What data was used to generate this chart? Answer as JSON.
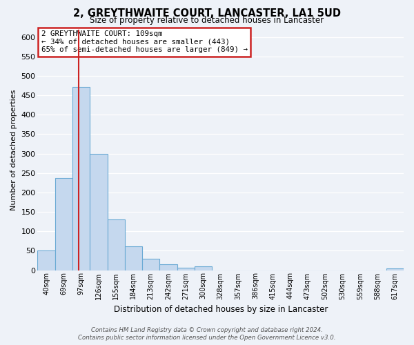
{
  "title": "2, GREYTHWAITE COURT, LANCASTER, LA1 5UD",
  "subtitle": "Size of property relative to detached houses in Lancaster",
  "xlabel": "Distribution of detached houses by size in Lancaster",
  "ylabel": "Number of detached properties",
  "bar_color": "#c5d8ee",
  "bar_edge_color": "#6aaad4",
  "bin_labels": [
    "40sqm",
    "69sqm",
    "97sqm",
    "126sqm",
    "155sqm",
    "184sqm",
    "213sqm",
    "242sqm",
    "271sqm",
    "300sqm",
    "328sqm",
    "357sqm",
    "386sqm",
    "415sqm",
    "444sqm",
    "473sqm",
    "502sqm",
    "530sqm",
    "559sqm",
    "588sqm",
    "617sqm"
  ],
  "bar_heights": [
    50,
    238,
    472,
    300,
    130,
    62,
    30,
    16,
    7,
    10,
    0,
    0,
    0,
    0,
    0,
    0,
    0,
    0,
    0,
    0,
    4
  ],
  "ylim": [
    0,
    620
  ],
  "yticks": [
    0,
    50,
    100,
    150,
    200,
    250,
    300,
    350,
    400,
    450,
    500,
    550,
    600
  ],
  "vline_color": "#cc2222",
  "annotation_text": "2 GREYTHWAITE COURT: 109sqm\n← 34% of detached houses are smaller (443)\n65% of semi-detached houses are larger (849) →",
  "annotation_box_color": "#ffffff",
  "annotation_box_edge": "#cc2222",
  "footer_line1": "Contains HM Land Registry data © Crown copyright and database right 2024.",
  "footer_line2": "Contains public sector information licensed under the Open Government Licence v3.0.",
  "background_color": "#eef2f8"
}
